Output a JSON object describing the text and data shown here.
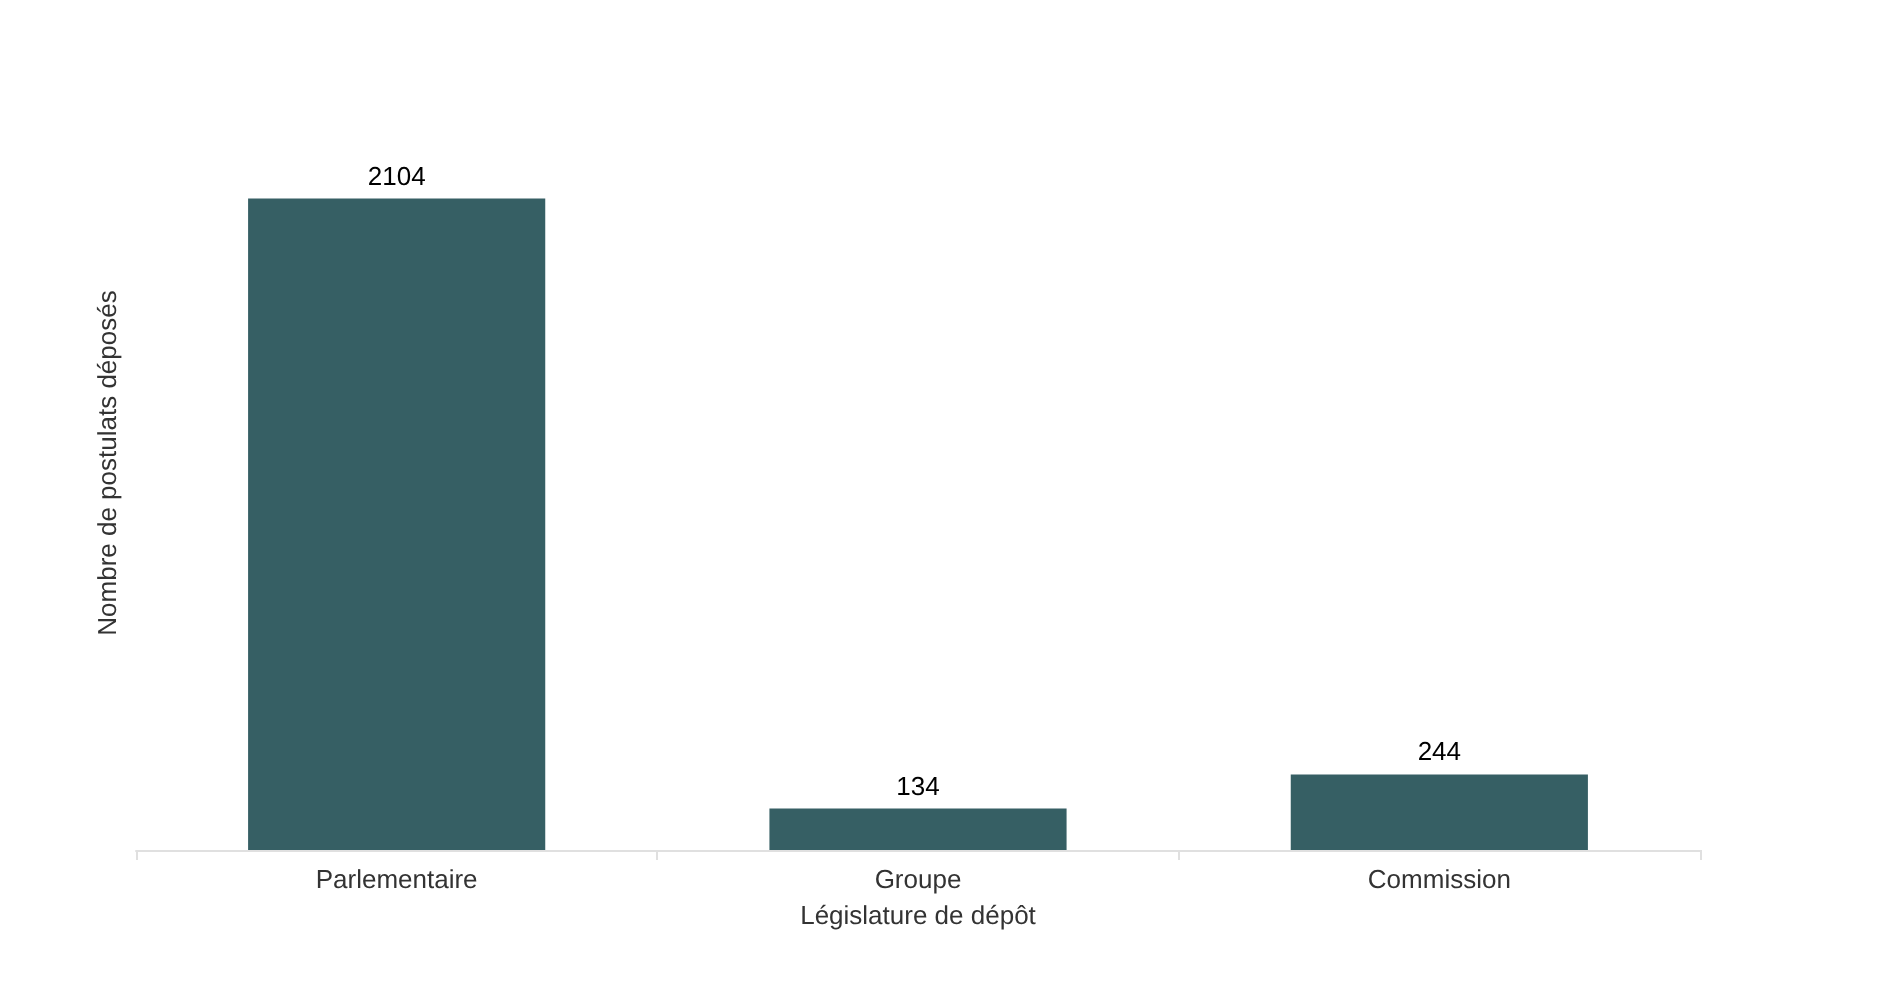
{
  "chart_data": {
    "type": "bar",
    "xlabel": "Législature de dépôt",
    "ylabel": "Nombre de postulats déposés",
    "categories": [
      "Parlementaire",
      "Groupe",
      "Commission"
    ],
    "values": [
      2104,
      134,
      244
    ],
    "color": "#365f64",
    "data_labels": true
  }
}
